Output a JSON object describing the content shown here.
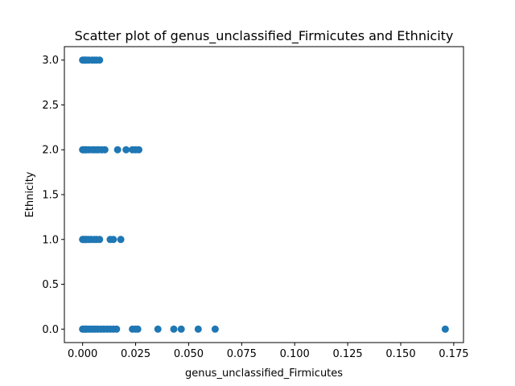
{
  "chart_data": {
    "type": "scatter",
    "title": "Scatter plot of genus_unclassified_Firmicutes and Ethnicity",
    "xlabel": "genus_unclassified_Firmicutes",
    "ylabel": "Ethnicity",
    "xlim": [
      -0.0086,
      0.1796
    ],
    "ylim": [
      -0.15,
      3.15
    ],
    "x_ticks": [
      "0.000",
      "0.025",
      "0.050",
      "0.075",
      "0.100",
      "0.125",
      "0.150",
      "0.175"
    ],
    "y_ticks": [
      "0.0",
      "0.5",
      "1.0",
      "1.5",
      "2.0",
      "2.5",
      "3.0"
    ],
    "grid": false,
    "marker_color": "#1f77b4",
    "points": [
      {
        "x": 0.0,
        "y": 3
      },
      {
        "x": 0.0005,
        "y": 3
      },
      {
        "x": 0.001,
        "y": 3
      },
      {
        "x": 0.0015,
        "y": 3
      },
      {
        "x": 0.002,
        "y": 3
      },
      {
        "x": 0.003,
        "y": 3
      },
      {
        "x": 0.0045,
        "y": 3
      },
      {
        "x": 0.0055,
        "y": 3
      },
      {
        "x": 0.0065,
        "y": 3
      },
      {
        "x": 0.008,
        "y": 3
      },
      {
        "x": 0.0,
        "y": 2
      },
      {
        "x": 0.0005,
        "y": 2
      },
      {
        "x": 0.001,
        "y": 2
      },
      {
        "x": 0.0015,
        "y": 2
      },
      {
        "x": 0.002,
        "y": 2
      },
      {
        "x": 0.003,
        "y": 2
      },
      {
        "x": 0.0045,
        "y": 2
      },
      {
        "x": 0.0055,
        "y": 2
      },
      {
        "x": 0.0065,
        "y": 2
      },
      {
        "x": 0.0075,
        "y": 2
      },
      {
        "x": 0.009,
        "y": 2
      },
      {
        "x": 0.0105,
        "y": 2
      },
      {
        "x": 0.0165,
        "y": 2
      },
      {
        "x": 0.0205,
        "y": 2
      },
      {
        "x": 0.0235,
        "y": 2
      },
      {
        "x": 0.025,
        "y": 2
      },
      {
        "x": 0.0265,
        "y": 2
      },
      {
        "x": 0.0,
        "y": 1
      },
      {
        "x": 0.0005,
        "y": 1
      },
      {
        "x": 0.001,
        "y": 1
      },
      {
        "x": 0.0015,
        "y": 1
      },
      {
        "x": 0.002,
        "y": 1
      },
      {
        "x": 0.003,
        "y": 1
      },
      {
        "x": 0.004,
        "y": 1
      },
      {
        "x": 0.0055,
        "y": 1
      },
      {
        "x": 0.0065,
        "y": 1
      },
      {
        "x": 0.008,
        "y": 1
      },
      {
        "x": 0.013,
        "y": 1
      },
      {
        "x": 0.0145,
        "y": 1
      },
      {
        "x": 0.018,
        "y": 1
      },
      {
        "x": 0.0,
        "y": 0
      },
      {
        "x": 0.0005,
        "y": 0
      },
      {
        "x": 0.001,
        "y": 0
      },
      {
        "x": 0.0015,
        "y": 0
      },
      {
        "x": 0.002,
        "y": 0
      },
      {
        "x": 0.003,
        "y": 0
      },
      {
        "x": 0.004,
        "y": 0
      },
      {
        "x": 0.005,
        "y": 0
      },
      {
        "x": 0.006,
        "y": 0
      },
      {
        "x": 0.007,
        "y": 0
      },
      {
        "x": 0.0085,
        "y": 0
      },
      {
        "x": 0.01,
        "y": 0
      },
      {
        "x": 0.0115,
        "y": 0
      },
      {
        "x": 0.013,
        "y": 0
      },
      {
        "x": 0.0145,
        "y": 0
      },
      {
        "x": 0.016,
        "y": 0
      },
      {
        "x": 0.0235,
        "y": 0
      },
      {
        "x": 0.025,
        "y": 0
      },
      {
        "x": 0.026,
        "y": 0
      },
      {
        "x": 0.0355,
        "y": 0
      },
      {
        "x": 0.043,
        "y": 0
      },
      {
        "x": 0.0465,
        "y": 0
      },
      {
        "x": 0.0545,
        "y": 0
      },
      {
        "x": 0.0625,
        "y": 0
      },
      {
        "x": 0.171,
        "y": 0
      }
    ]
  }
}
